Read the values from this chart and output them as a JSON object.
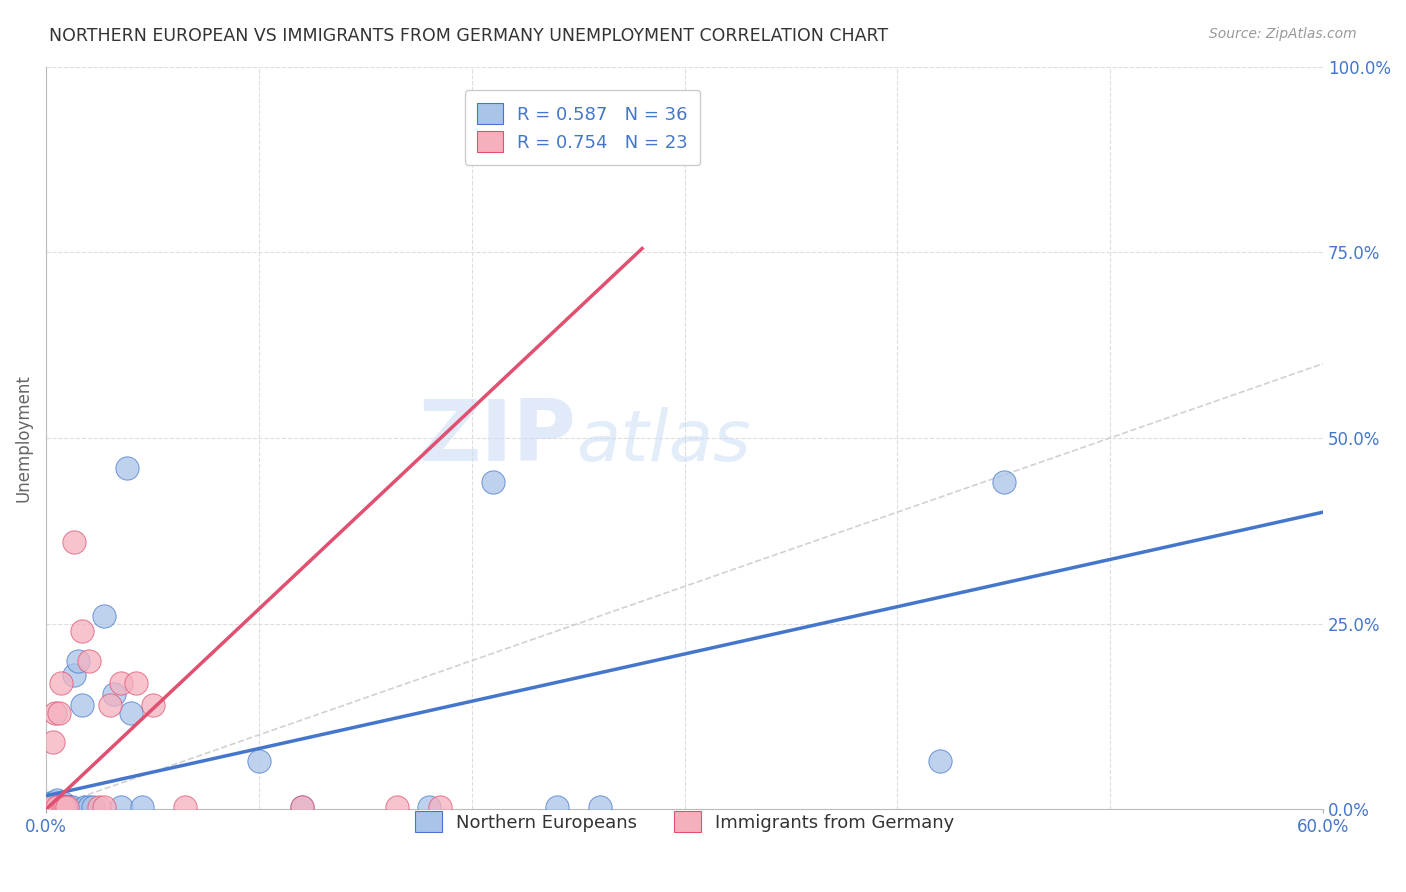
{
  "title": "NORTHERN EUROPEAN VS IMMIGRANTS FROM GERMANY UNEMPLOYMENT CORRELATION CHART",
  "source": "Source: ZipAtlas.com",
  "ylabel": "Unemployment",
  "ytick_labels": [
    "0.0%",
    "25.0%",
    "50.0%",
    "75.0%",
    "100.0%"
  ],
  "ytick_values": [
    0,
    0.25,
    0.5,
    0.75,
    1.0
  ],
  "xlim": [
    0,
    0.6
  ],
  "ylim": [
    0,
    1.0
  ],
  "legend1_label": "R = 0.587   N = 36",
  "legend2_label": "R = 0.754   N = 23",
  "legend_bottom": "Northern Europeans",
  "legend_bottom2": "Immigrants from Germany",
  "blue_color": "#a8c4e8",
  "pink_color": "#f5b0be",
  "blue_line_color": "#4477cc",
  "pink_line_color": "#e05070",
  "ref_line_color": "#cccccc",
  "watermark_zip": "ZIP",
  "watermark_atlas": "atlas",
  "title_color": "#333333",
  "blue_scatter": [
    [
      0.001,
      0.002
    ],
    [
      0.002,
      0.004
    ],
    [
      0.002,
      0.008
    ],
    [
      0.003,
      0.003
    ],
    [
      0.003,
      0.006
    ],
    [
      0.004,
      0.003
    ],
    [
      0.004,
      0.009
    ],
    [
      0.005,
      0.005
    ],
    [
      0.005,
      0.012
    ],
    [
      0.006,
      0.003
    ],
    [
      0.007,
      0.003
    ],
    [
      0.008,
      0.008
    ],
    [
      0.009,
      0.003
    ],
    [
      0.01,
      0.003
    ],
    [
      0.011,
      0.003
    ],
    [
      0.012,
      0.003
    ],
    [
      0.013,
      0.18
    ],
    [
      0.015,
      0.2
    ],
    [
      0.017,
      0.14
    ],
    [
      0.018,
      0.003
    ],
    [
      0.02,
      0.003
    ],
    [
      0.022,
      0.003
    ],
    [
      0.027,
      0.26
    ],
    [
      0.032,
      0.155
    ],
    [
      0.035,
      0.003
    ],
    [
      0.038,
      0.46
    ],
    [
      0.04,
      0.13
    ],
    [
      0.045,
      0.003
    ],
    [
      0.1,
      0.065
    ],
    [
      0.12,
      0.003
    ],
    [
      0.18,
      0.003
    ],
    [
      0.21,
      0.44
    ],
    [
      0.24,
      0.003
    ],
    [
      0.26,
      0.003
    ],
    [
      0.42,
      0.065
    ],
    [
      0.45,
      0.44
    ]
  ],
  "pink_scatter": [
    [
      0.001,
      0.002
    ],
    [
      0.002,
      0.005
    ],
    [
      0.003,
      0.09
    ],
    [
      0.004,
      0.13
    ],
    [
      0.005,
      0.003
    ],
    [
      0.006,
      0.13
    ],
    [
      0.007,
      0.17
    ],
    [
      0.008,
      0.003
    ],
    [
      0.009,
      0.003
    ],
    [
      0.01,
      0.003
    ],
    [
      0.013,
      0.36
    ],
    [
      0.017,
      0.24
    ],
    [
      0.02,
      0.2
    ],
    [
      0.025,
      0.003
    ],
    [
      0.027,
      0.003
    ],
    [
      0.03,
      0.14
    ],
    [
      0.035,
      0.17
    ],
    [
      0.042,
      0.17
    ],
    [
      0.05,
      0.14
    ],
    [
      0.065,
      0.003
    ],
    [
      0.12,
      0.003
    ],
    [
      0.165,
      0.003
    ],
    [
      0.185,
      0.003
    ]
  ],
  "blue_reg": [
    0.0,
    0.018,
    0.6,
    0.4
  ],
  "pink_reg": [
    0.0,
    0.0,
    0.28,
    0.755
  ],
  "grid_color": "#dddddd",
  "xtick_positions": [
    0.0,
    0.1,
    0.2,
    0.3,
    0.4,
    0.5,
    0.6
  ]
}
